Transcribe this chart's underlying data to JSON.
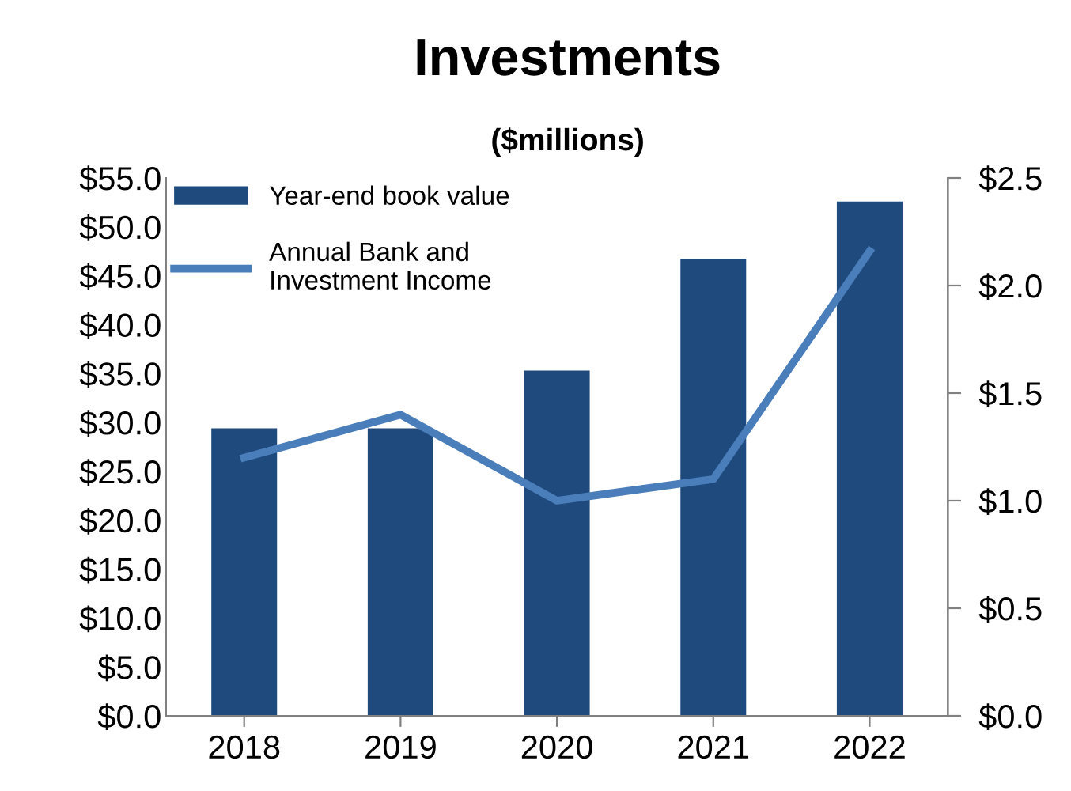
{
  "chart_data": {
    "type": "bar",
    "title": "Investments",
    "subtitle": "($millions)",
    "categories": [
      "2018",
      "2019",
      "2020",
      "2021",
      "2022"
    ],
    "series": [
      {
        "name": "Year-end book value",
        "color": "#1f4a7e",
        "values": [
          29.4,
          29.4,
          35.3,
          46.7,
          52.6
        ]
      },
      {
        "name": "Annual Bank and\nInvestment Income",
        "type": "line",
        "axis": "y2",
        "color": "#4a7ebb",
        "values": [
          1.2,
          1.4,
          1.0,
          1.1,
          2.16
        ]
      }
    ],
    "ylim": [
      0,
      55
    ],
    "yticks": [
      {
        "value": 0,
        "label": "$0.0"
      },
      {
        "value": 5,
        "label": "$5.0"
      },
      {
        "value": 10,
        "label": "$10.0"
      },
      {
        "value": 15,
        "label": "$15.0"
      },
      {
        "value": 20,
        "label": "$20.0"
      },
      {
        "value": 25,
        "label": "$25.0"
      },
      {
        "value": 30,
        "label": "$30.0"
      },
      {
        "value": 35,
        "label": "$35.0"
      },
      {
        "value": 40,
        "label": "$40.0"
      },
      {
        "value": 45,
        "label": "$45.0"
      },
      {
        "value": 50,
        "label": "$50.0"
      },
      {
        "value": 55,
        "label": "$55.0"
      }
    ],
    "y2lim": [
      0,
      2.5
    ],
    "y2ticks": [
      {
        "value": 0,
        "label": "$0.0"
      },
      {
        "value": 0.5,
        "label": "$0.5"
      },
      {
        "value": 1.0,
        "label": "$1.0"
      },
      {
        "value": 1.5,
        "label": "$1.5"
      },
      {
        "value": 2.0,
        "label": "$2.0"
      },
      {
        "value": 2.5,
        "label": "$2.5"
      }
    ],
    "grid": false,
    "legend": "top left",
    "marker": "none",
    "line_style": "solid"
  }
}
